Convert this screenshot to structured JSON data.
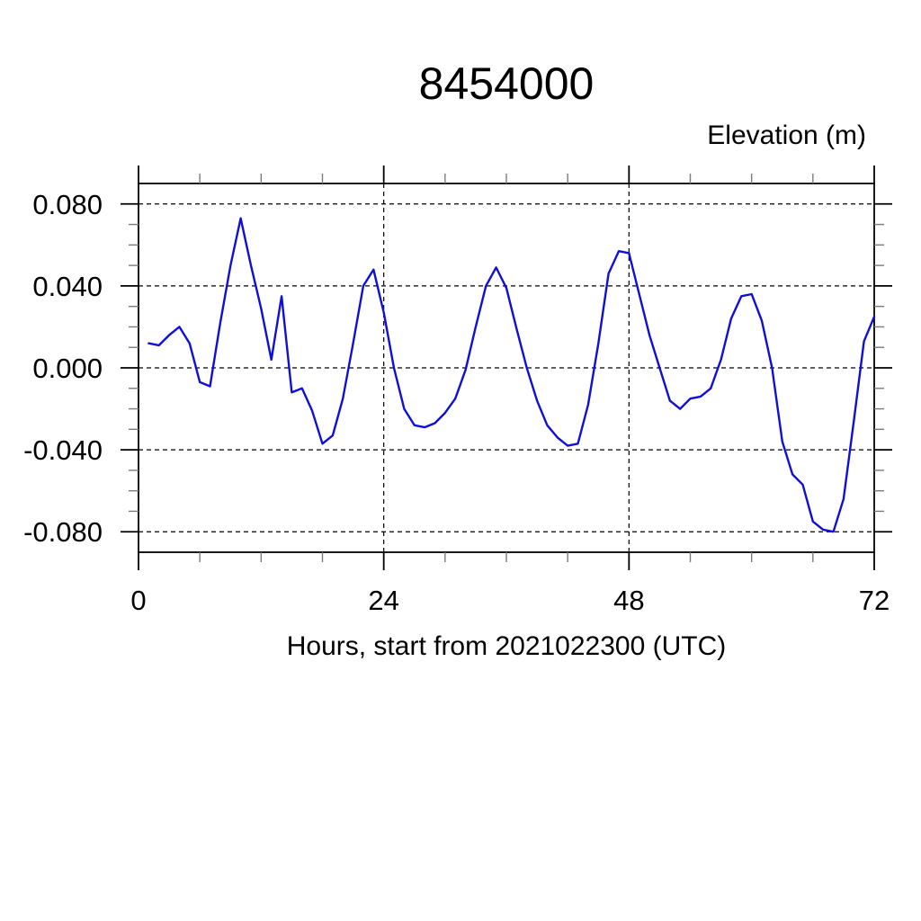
{
  "chart_data": {
    "type": "line",
    "title": "8454000",
    "xlabel": "Hours, start from 2021022300 (UTC)",
    "ylabel": "Elevation (m)",
    "xlim": [
      0,
      72
    ],
    "ylim": [
      -0.09,
      0.09
    ],
    "grid": "dashed black gridlines at y majors and x=24,48",
    "legend": null,
    "x_major_ticks": [
      0,
      24,
      48,
      72
    ],
    "x_tick_labels": [
      "0",
      "24",
      "48",
      "72"
    ],
    "x_minor_ticks": [
      6,
      12,
      18,
      30,
      36,
      42,
      54,
      60,
      66
    ],
    "x_gridlines": [
      24,
      48
    ],
    "y_major_ticks": [
      0.08,
      0.04,
      0,
      -0.04,
      -0.08
    ],
    "y_tick_labels": [
      "0.080",
      "0.040",
      "0.000",
      "-0.040",
      "-0.080"
    ],
    "y_minor_ticks": [
      0.07,
      0.06,
      0.05,
      0.03,
      0.02,
      0.01,
      -0.01,
      -0.02,
      -0.03,
      -0.05,
      -0.06,
      -0.07
    ],
    "series": [
      {
        "name": "elevation",
        "color": "#0f0fd8",
        "x": [
          1,
          2,
          3,
          4,
          5,
          6,
          7,
          8,
          9,
          10,
          11,
          12,
          13,
          14,
          15,
          16,
          17,
          18,
          19,
          20,
          21,
          22,
          23,
          24,
          25,
          26,
          27,
          28,
          29,
          30,
          31,
          32,
          33,
          34,
          35,
          36,
          37,
          38,
          39,
          40,
          41,
          42,
          43,
          44,
          45,
          46,
          47,
          48,
          49,
          50,
          51,
          52,
          53,
          54,
          55,
          56,
          57,
          58,
          59,
          60,
          61,
          62,
          63,
          64,
          65,
          66,
          67,
          68,
          69,
          70,
          71,
          72
        ],
        "y": [
          0.012,
          0.011,
          0.016,
          0.02,
          0.012,
          -0.007,
          -0.009,
          0.022,
          0.05,
          0.073,
          0.05,
          0.029,
          0.004,
          0.035,
          -0.012,
          -0.01,
          -0.021,
          -0.037,
          -0.033,
          -0.015,
          0.012,
          0.04,
          0.048,
          0.027,
          0.0,
          -0.02,
          -0.028,
          -0.029,
          -0.027,
          -0.022,
          -0.015,
          -0.001,
          0.02,
          0.04,
          0.049,
          0.039,
          0.019,
          0.0,
          -0.016,
          -0.028,
          -0.034,
          -0.038,
          -0.037,
          -0.018,
          0.012,
          0.046,
          0.057,
          0.056,
          0.036,
          0.016,
          0.0,
          -0.016,
          -0.02,
          -0.015,
          -0.014,
          -0.01,
          0.004,
          0.024,
          0.035,
          0.036,
          0.023,
          0.0,
          -0.036,
          -0.052,
          -0.057,
          -0.075,
          -0.079,
          -0.08,
          -0.064,
          -0.026,
          0.013,
          0.025
        ]
      }
    ]
  }
}
